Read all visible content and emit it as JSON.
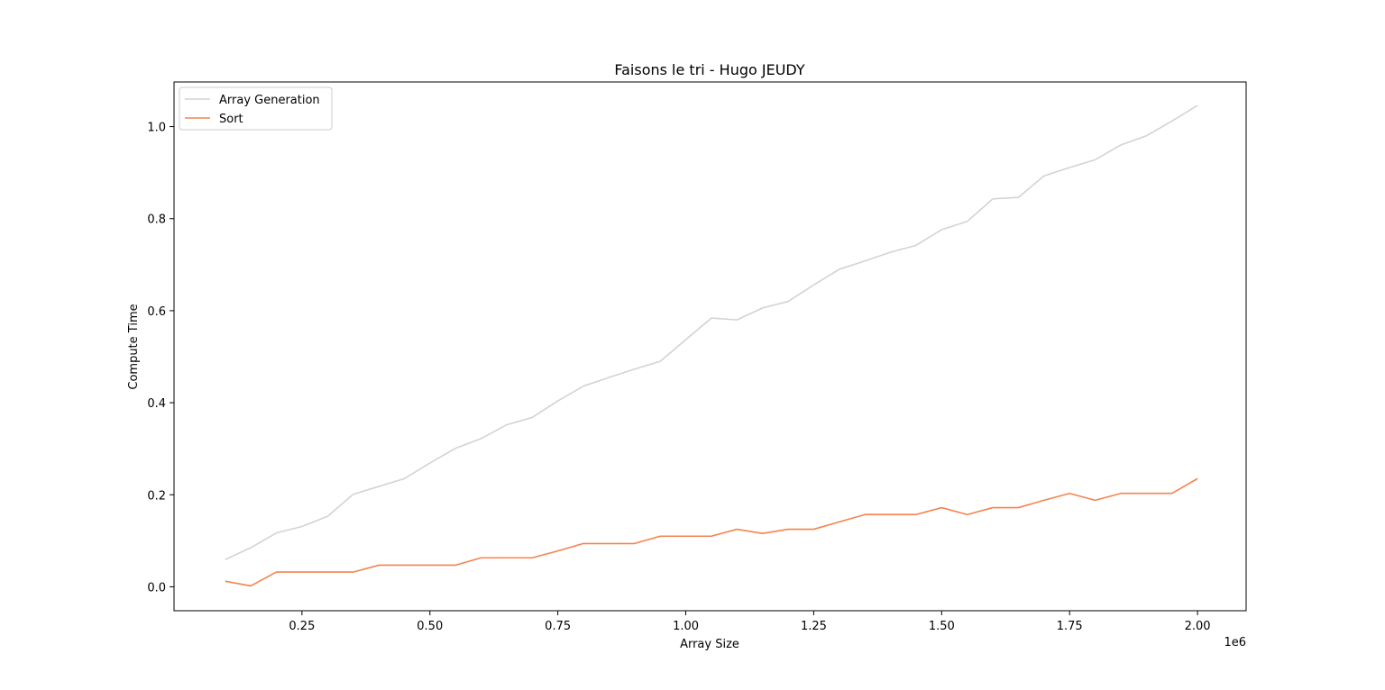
{
  "chart_data": {
    "type": "line",
    "title": "Faisons le tri - Hugo JEUDY",
    "xlabel": "Array Size",
    "ylabel": "Compute Time",
    "x_offset_label": "1e6",
    "xlim": [
      0.0,
      2.095
    ],
    "ylim": [
      -0.052,
      1.097
    ],
    "x_ticks": [
      0.25,
      0.5,
      0.75,
      1.0,
      1.25,
      1.5,
      1.75,
      2.0
    ],
    "x_tick_labels": [
      "0.25",
      "0.50",
      "0.75",
      "1.00",
      "1.25",
      "1.50",
      "1.75",
      "2.00"
    ],
    "y_ticks": [
      0.0,
      0.2,
      0.4,
      0.6,
      0.8,
      1.0
    ],
    "y_tick_labels": [
      "0.0",
      "0.2",
      "0.4",
      "0.6",
      "0.8",
      "1.0"
    ],
    "grid": false,
    "legend_position": "upper-left",
    "x": [
      0.1,
      0.15,
      0.2,
      0.25,
      0.3,
      0.35,
      0.4,
      0.45,
      0.5,
      0.55,
      0.6,
      0.65,
      0.7,
      0.75,
      0.8,
      0.85,
      0.9,
      0.95,
      1.0,
      1.05,
      1.1,
      1.15,
      1.2,
      1.25,
      1.3,
      1.35,
      1.4,
      1.45,
      1.5,
      1.55,
      1.6,
      1.65,
      1.7,
      1.75,
      1.8,
      1.85,
      1.9,
      1.95,
      2.0
    ],
    "series": [
      {
        "name": "Array Generation",
        "color": "#d3d3d3",
        "values": [
          0.059,
          0.085,
          0.117,
          0.131,
          0.153,
          0.201,
          0.218,
          0.235,
          0.269,
          0.301,
          0.322,
          0.352,
          0.368,
          0.404,
          0.436,
          0.455,
          0.473,
          0.49,
          0.537,
          0.584,
          0.58,
          0.606,
          0.62,
          0.656,
          0.69,
          0.708,
          0.727,
          0.742,
          0.776,
          0.794,
          0.843,
          0.846,
          0.893,
          0.911,
          0.928,
          0.96,
          0.98,
          1.012,
          1.046
        ]
      },
      {
        "name": "Sort",
        "color": "#f4834f",
        "values": [
          0.012,
          0.002,
          0.032,
          0.032,
          0.032,
          0.032,
          0.047,
          0.047,
          0.047,
          0.047,
          0.063,
          0.063,
          0.063,
          0.078,
          0.094,
          0.094,
          0.094,
          0.11,
          0.11,
          0.11,
          0.125,
          0.116,
          0.125,
          0.125,
          0.141,
          0.157,
          0.157,
          0.157,
          0.172,
          0.157,
          0.172,
          0.172,
          0.188,
          0.203,
          0.188,
          0.203,
          0.203,
          0.203,
          0.235
        ]
      }
    ]
  }
}
